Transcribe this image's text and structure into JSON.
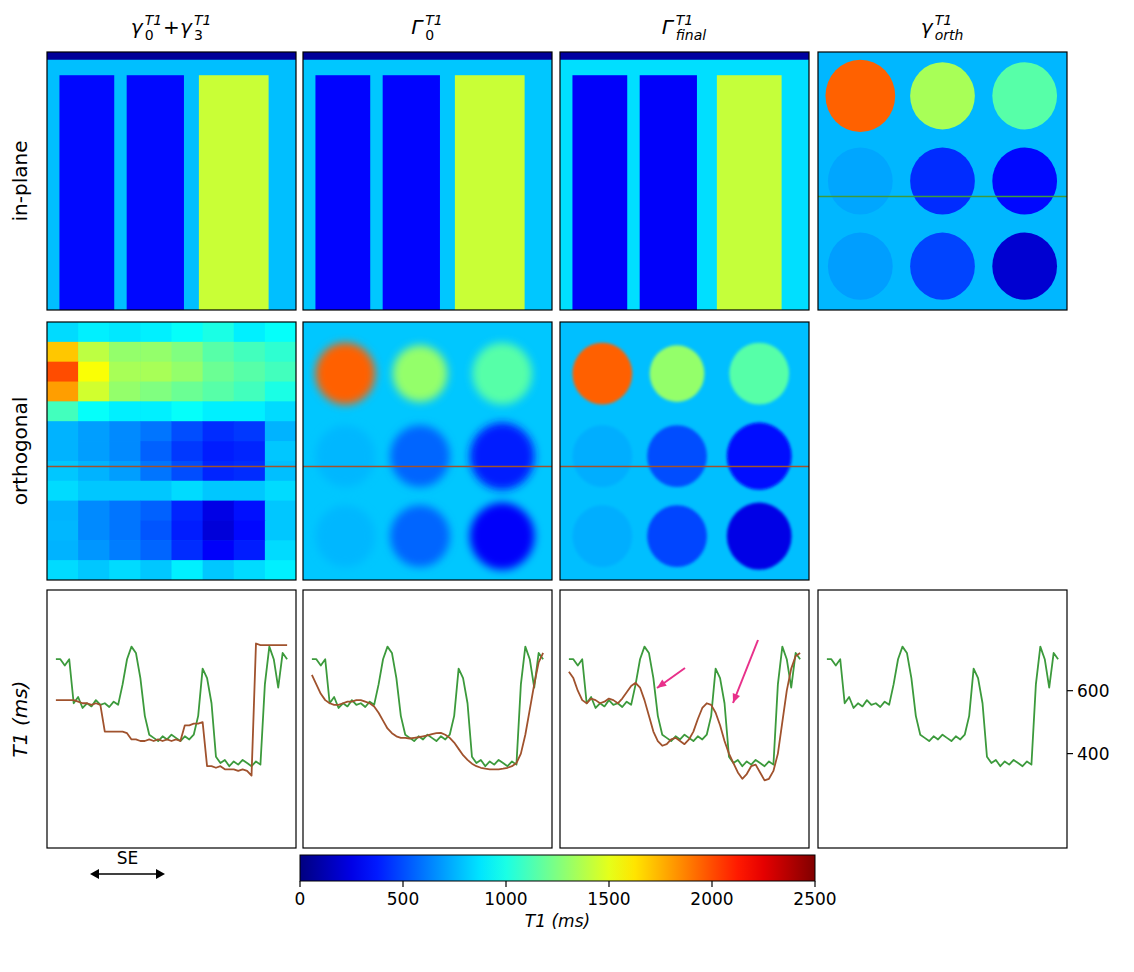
{
  "columns": [
    {
      "title": [
        {
          "t": "γ",
          "sub": "0",
          "sup": "T1"
        },
        {
          "t": " + "
        },
        {
          "t": "γ",
          "sub": "3",
          "sup": "T1"
        }
      ]
    },
    {
      "title": [
        {
          "t": "Γ",
          "sub": "0",
          "sup": "T1"
        }
      ]
    },
    {
      "title": [
        {
          "t": "Γ",
          "sub": "final",
          "sup": "T1"
        }
      ]
    },
    {
      "title": [
        {
          "t": "γ",
          "sub": "orth",
          "sup": "T1"
        }
      ]
    }
  ],
  "rows": [
    "in-plane",
    "orthogonal"
  ],
  "image_rows": [
    [
      {
        "background": 780,
        "rects": [
          [
            0,
            0,
            100,
            3,
            60
          ],
          [
            5,
            9,
            27,
            100,
            330
          ],
          [
            32,
            9,
            55,
            100,
            330
          ],
          [
            61,
            9,
            89,
            100,
            1430
          ]
        ],
        "circles": [],
        "cells": []
      },
      {
        "background": 800,
        "rects": [
          [
            0,
            0,
            100,
            3,
            60
          ],
          [
            5,
            9,
            27,
            100,
            320
          ],
          [
            32,
            9,
            55,
            100,
            320
          ],
          [
            61,
            9,
            89,
            100,
            1430
          ]
        ],
        "circles": [],
        "cells": []
      },
      {
        "background": 860,
        "rects": [
          [
            0,
            0,
            100,
            3,
            80
          ],
          [
            5,
            9,
            27,
            100,
            300
          ],
          [
            32,
            9,
            55,
            100,
            300
          ],
          [
            63,
            9,
            89,
            100,
            1420
          ]
        ],
        "circles": [],
        "cells": []
      },
      {
        "background": 760,
        "rects": [],
        "circles": [
          [
            17,
            17,
            14,
            1950
          ],
          [
            50,
            17,
            13,
            1350
          ],
          [
            83,
            17,
            13,
            1150
          ],
          [
            17,
            50,
            13,
            720
          ],
          [
            50,
            50,
            13,
            420
          ],
          [
            83,
            50,
            13,
            330
          ],
          [
            17,
            83,
            13,
            700
          ],
          [
            50,
            83,
            13,
            480
          ],
          [
            83,
            83,
            13,
            200
          ]
        ],
        "cells": [],
        "profile": {
          "y": 56,
          "color": "#3c9a3c"
        }
      }
    ],
    [
      {
        "background": 800,
        "rects": [],
        "circles": [],
        "cells": [
          [
            850,
            900,
            880,
            900,
            950,
            1000,
            900,
            950
          ],
          [
            1700,
            1400,
            1300,
            1300,
            1250,
            1150,
            1100,
            1050
          ],
          [
            2000,
            1550,
            1350,
            1350,
            1300,
            1200,
            1150,
            1100
          ],
          [
            1800,
            1450,
            1300,
            1250,
            1200,
            1150,
            1100,
            1000
          ],
          [
            1100,
            950,
            900,
            900,
            950,
            900,
            900,
            850
          ],
          [
            750,
            700,
            650,
            600,
            500,
            420,
            450,
            750
          ],
          [
            750,
            700,
            650,
            550,
            450,
            380,
            400,
            800
          ],
          [
            800,
            750,
            700,
            600,
            500,
            400,
            420,
            780
          ],
          [
            850,
            800,
            800,
            800,
            850,
            800,
            800,
            850
          ],
          [
            750,
            650,
            600,
            550,
            400,
            250,
            350,
            800
          ],
          [
            760,
            650,
            600,
            520,
            380,
            220,
            330,
            800
          ],
          [
            750,
            680,
            620,
            560,
            420,
            300,
            380,
            850
          ],
          [
            850,
            800,
            850,
            800,
            900,
            800,
            850,
            900
          ]
        ],
        "profile": {
          "y": 56,
          "color": "#a0522d"
        }
      },
      {
        "background": 800,
        "rects": [],
        "circles": [
          [
            17,
            20,
            12,
            1950
          ],
          [
            47,
            20,
            11,
            1300
          ],
          [
            80,
            20,
            12,
            1150
          ],
          [
            17,
            52,
            12,
            760
          ],
          [
            47,
            52,
            12,
            560
          ],
          [
            80,
            52,
            13,
            380
          ],
          [
            17,
            83,
            12,
            760
          ],
          [
            47,
            83,
            12,
            560
          ],
          [
            80,
            83,
            13,
            300
          ]
        ],
        "cells": [],
        "profile": {
          "y": 56,
          "color": "#a0522d"
        }
      },
      {
        "background": 780,
        "rects": [],
        "circles": [
          [
            17,
            20,
            12,
            1950
          ],
          [
            47,
            20,
            11,
            1300
          ],
          [
            80,
            20,
            12,
            1150
          ],
          [
            17,
            52,
            12,
            740
          ],
          [
            47,
            52,
            12,
            500
          ],
          [
            80,
            52,
            13,
            330
          ],
          [
            17,
            83,
            12,
            740
          ],
          [
            47,
            83,
            12,
            480
          ],
          [
            80,
            83,
            13,
            250
          ]
        ],
        "cells": [],
        "profile": {
          "y": 56,
          "color": "#a0522d"
        }
      },
      null
    ]
  ],
  "chart_data": [
    {
      "type": "line",
      "ylabel": "T1 (ms)",
      "xlim": [
        -2,
        54
      ],
      "ylim": [
        100,
        920
      ],
      "tick_labels": false,
      "series": [
        {
          "color": "#3c9a3c",
          "values": [
            700,
            700,
            680,
            700,
            560,
            580,
            545,
            560,
            550,
            570,
            555,
            560,
            548,
            565,
            555,
            620,
            700,
            740,
            720,
            640,
            520,
            460,
            450,
            440,
            455,
            445,
            460,
            450,
            440,
            455,
            445,
            460,
            520,
            670,
            640,
            560,
            390,
            370,
            380,
            360,
            375,
            365,
            380,
            370,
            360,
            375,
            365,
            620,
            740,
            700,
            610,
            720,
            700
          ]
        },
        {
          "color": "#a0522d",
          "values": [
            570,
            570,
            570,
            570,
            570,
            565,
            560,
            560,
            555,
            560,
            555,
            470,
            470,
            470,
            470,
            470,
            465,
            445,
            445,
            440,
            440,
            445,
            440,
            445,
            440,
            445,
            440,
            445,
            440,
            490,
            490,
            495,
            495,
            500,
            360,
            360,
            355,
            360,
            350,
            350,
            350,
            345,
            350,
            345,
            330,
            750,
            745,
            745,
            745,
            745,
            745,
            745,
            745
          ]
        }
      ]
    },
    {
      "type": "line",
      "xlim": [
        -2,
        54
      ],
      "ylim": [
        100,
        920
      ],
      "tick_labels": false,
      "series": [
        {
          "color": "#3c9a3c",
          "values": [
            700,
            700,
            680,
            700,
            560,
            580,
            545,
            560,
            550,
            570,
            555,
            560,
            548,
            565,
            555,
            620,
            700,
            740,
            720,
            640,
            520,
            460,
            450,
            440,
            455,
            445,
            460,
            450,
            440,
            455,
            445,
            460,
            520,
            670,
            640,
            560,
            390,
            370,
            380,
            360,
            375,
            365,
            380,
            370,
            360,
            375,
            365,
            620,
            740,
            700,
            610,
            720,
            700
          ]
        },
        {
          "color": "#a0522d",
          "values": [
            650,
            620,
            590,
            570,
            560,
            555,
            555,
            560,
            565,
            565,
            570,
            570,
            565,
            560,
            550,
            530,
            505,
            480,
            465,
            455,
            450,
            450,
            448,
            450,
            452,
            455,
            458,
            462,
            465,
            466,
            460,
            450,
            435,
            415,
            395,
            380,
            368,
            360,
            355,
            352,
            350,
            350,
            350,
            352,
            355,
            360,
            370,
            400,
            460,
            540,
            620,
            690,
            720
          ]
        }
      ]
    },
    {
      "type": "line",
      "xlim": [
        -2,
        54
      ],
      "ylim": [
        100,
        920
      ],
      "tick_labels": false,
      "series": [
        {
          "color": "#3c9a3c",
          "values": [
            700,
            700,
            680,
            700,
            560,
            580,
            545,
            560,
            550,
            570,
            555,
            560,
            548,
            565,
            555,
            620,
            700,
            740,
            720,
            640,
            520,
            460,
            450,
            440,
            455,
            445,
            460,
            450,
            440,
            455,
            445,
            460,
            520,
            670,
            640,
            560,
            390,
            370,
            380,
            360,
            375,
            365,
            380,
            370,
            360,
            375,
            365,
            620,
            740,
            700,
            610,
            720,
            700
          ]
        },
        {
          "color": "#a0522d",
          "values": [
            660,
            640,
            600,
            570,
            560,
            575,
            570,
            560,
            565,
            575,
            570,
            560,
            575,
            595,
            615,
            625,
            610,
            570,
            520,
            470,
            440,
            425,
            430,
            445,
            450,
            440,
            430,
            445,
            470,
            510,
            545,
            560,
            555,
            530,
            490,
            440,
            400,
            370,
            340,
            320,
            335,
            360,
            365,
            340,
            315,
            320,
            345,
            400,
            500,
            600,
            670,
            710,
            720
          ]
        }
      ]
    },
    {
      "type": "line",
      "xlim": [
        -2,
        54
      ],
      "ylim": [
        100,
        920
      ],
      "yticks": [
        400,
        600
      ],
      "tick_labels": "y",
      "series": [
        {
          "color": "#3c9a3c",
          "values": [
            700,
            700,
            680,
            700,
            560,
            580,
            545,
            560,
            550,
            570,
            555,
            560,
            548,
            565,
            555,
            620,
            700,
            740,
            720,
            640,
            520,
            460,
            450,
            440,
            455,
            445,
            460,
            450,
            440,
            455,
            445,
            460,
            520,
            670,
            640,
            560,
            390,
            370,
            380,
            360,
            375,
            365,
            380,
            370,
            360,
            375,
            365,
            620,
            740,
            700,
            610,
            720,
            700
          ]
        }
      ]
    }
  ],
  "colorbar": {
    "range": [
      0,
      2500
    ],
    "ticks": [
      0,
      500,
      1000,
      1500,
      2000,
      2500
    ],
    "label": "T1 (ms)"
  },
  "scale_bar": {
    "label": "SE"
  }
}
